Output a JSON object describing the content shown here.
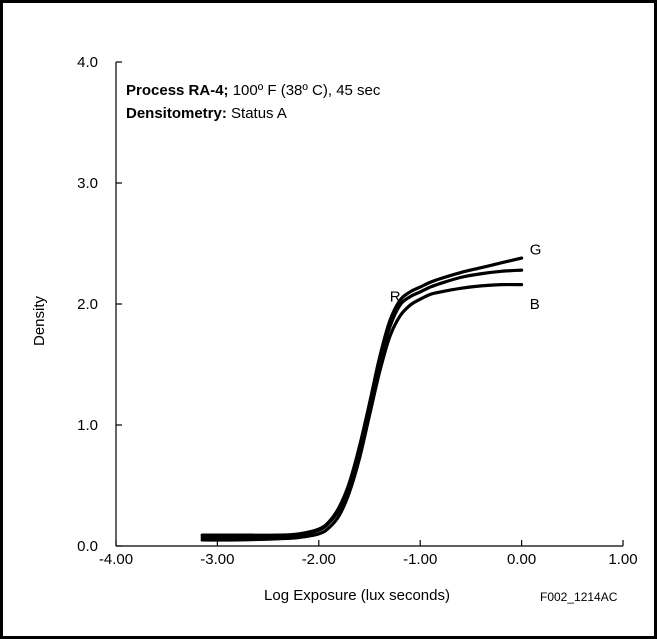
{
  "chart_data": {
    "type": "line",
    "title_lines": [
      {
        "bold": "Process RA-4;",
        "normal": " 100º F (38º C), 45 sec"
      },
      {
        "bold": "Densitometry:",
        "normal": " Status A"
      }
    ],
    "xlabel": "Log Exposure (lux seconds)",
    "ylabel": "Density",
    "xlim": [
      -4.0,
      1.0
    ],
    "ylim": [
      0.0,
      4.0
    ],
    "x_ticks": [
      -4.0,
      -3.0,
      -2.0,
      -1.0,
      0.0,
      1.0
    ],
    "x_tick_labels": [
      "-4.00",
      "-3.00",
      "-2.00",
      "-1.00",
      "0.00",
      "1.00"
    ],
    "y_ticks": [
      0.0,
      1.0,
      2.0,
      3.0,
      4.0
    ],
    "y_tick_labels": [
      "0.0",
      "1.0",
      "2.0",
      "3.0",
      "4.0"
    ],
    "grid": false,
    "series": [
      {
        "name": "R",
        "x": [
          -3.15,
          -2.8,
          -2.4,
          -2.2,
          -2.0,
          -1.9,
          -1.8,
          -1.7,
          -1.6,
          -1.5,
          -1.4,
          -1.3,
          -1.2,
          -1.1,
          -1.0,
          -0.9,
          -0.8,
          -0.6,
          -0.4,
          -0.2,
          0.0
        ],
        "y": [
          0.07,
          0.07,
          0.08,
          0.09,
          0.13,
          0.19,
          0.3,
          0.5,
          0.79,
          1.15,
          1.52,
          1.81,
          1.99,
          2.06,
          2.1,
          2.14,
          2.17,
          2.22,
          2.25,
          2.27,
          2.28
        ]
      },
      {
        "name": "G",
        "x": [
          -3.15,
          -2.8,
          -2.4,
          -2.2,
          -2.0,
          -1.9,
          -1.8,
          -1.7,
          -1.6,
          -1.5,
          -1.4,
          -1.3,
          -1.2,
          -1.1,
          -1.0,
          -0.9,
          -0.8,
          -0.6,
          -0.4,
          -0.2,
          0.0
        ],
        "y": [
          0.09,
          0.09,
          0.09,
          0.1,
          0.14,
          0.2,
          0.32,
          0.52,
          0.82,
          1.18,
          1.56,
          1.86,
          2.03,
          2.1,
          2.14,
          2.18,
          2.21,
          2.26,
          2.3,
          2.34,
          2.38
        ]
      },
      {
        "name": "B",
        "x": [
          -3.15,
          -2.8,
          -2.4,
          -2.2,
          -2.0,
          -1.9,
          -1.8,
          -1.7,
          -1.6,
          -1.5,
          -1.4,
          -1.3,
          -1.2,
          -1.1,
          -1.0,
          -0.9,
          -0.8,
          -0.6,
          -0.4,
          -0.2,
          0.0
        ],
        "y": [
          0.05,
          0.05,
          0.06,
          0.07,
          0.1,
          0.15,
          0.25,
          0.44,
          0.72,
          1.08,
          1.44,
          1.73,
          1.9,
          1.99,
          2.04,
          2.08,
          2.1,
          2.13,
          2.15,
          2.16,
          2.16
        ]
      }
    ],
    "curve_labels": [
      {
        "text": "G",
        "x": 0.08,
        "y": 2.45
      },
      {
        "text": "R",
        "x": -1.3,
        "y": 2.06
      },
      {
        "text": "B",
        "x": 0.08,
        "y": 2.0
      }
    ],
    "footer": "F002_1214AC",
    "colors": {
      "line": "#000000",
      "background": "#ffffff"
    }
  }
}
